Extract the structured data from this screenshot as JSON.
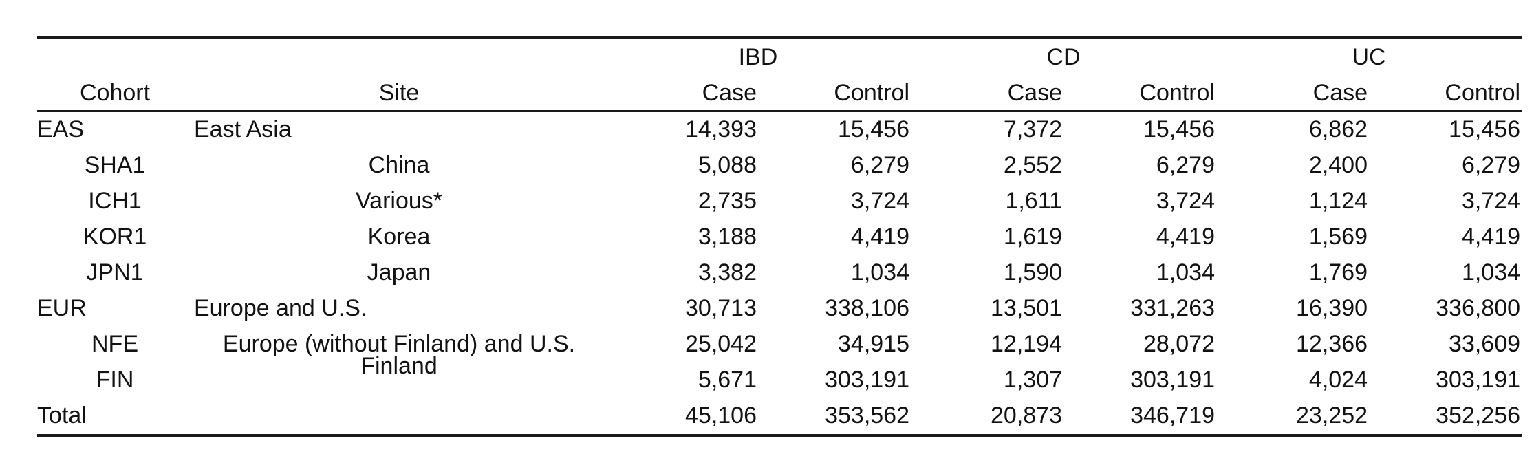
{
  "colors": {
    "background": "#ffffff",
    "text": "#121212",
    "rule": "#1a1a1a"
  },
  "table": {
    "group_headers": {
      "ibd": "IBD",
      "cd": "CD",
      "uc": "UC"
    },
    "headers": {
      "cohort": "Cohort",
      "site": "Site",
      "case": "Case",
      "control": "Control"
    },
    "rows": [
      {
        "cohort": "EAS",
        "site": "East Asia",
        "ibd_case": "14,393",
        "ibd_control": "15,456",
        "cd_case": "7,372",
        "cd_control": "15,456",
        "uc_case": "6,862",
        "uc_control": "15,456"
      },
      {
        "cohort": "SHA1",
        "site": "China",
        "ibd_case": "5,088",
        "ibd_control": "6,279",
        "cd_case": "2,552",
        "cd_control": "6,279",
        "uc_case": "2,400",
        "uc_control": "6,279"
      },
      {
        "cohort": "ICH1",
        "site": "Various*",
        "ibd_case": "2,735",
        "ibd_control": "3,724",
        "cd_case": "1,611",
        "cd_control": "3,724",
        "uc_case": "1,124",
        "uc_control": "3,724"
      },
      {
        "cohort": "KOR1",
        "site": "Korea",
        "ibd_case": "3,188",
        "ibd_control": "4,419",
        "cd_case": "1,619",
        "cd_control": "4,419",
        "uc_case": "1,569",
        "uc_control": "4,419"
      },
      {
        "cohort": "JPN1",
        "site": "Japan",
        "ibd_case": "3,382",
        "ibd_control": "1,034",
        "cd_case": "1,590",
        "cd_control": "1,034",
        "uc_case": "1,769",
        "uc_control": "1,034"
      },
      {
        "cohort": "EUR",
        "site": "Europe and U.S.",
        "ibd_case": "30,713",
        "ibd_control": "338,106",
        "cd_case": "13,501",
        "cd_control": "331,263",
        "uc_case": "16,390",
        "uc_control": "336,800"
      },
      {
        "cohort": "NFE",
        "site": "Europe (without Finland) and U.S.",
        "ibd_case": "25,042",
        "ibd_control": "34,915",
        "cd_case": "12,194",
        "cd_control": "28,072",
        "uc_case": "12,366",
        "uc_control": "33,609"
      },
      {
        "cohort": "FIN",
        "site": "Finland",
        "ibd_case": "5,671",
        "ibd_control": "303,191",
        "cd_case": "1,307",
        "cd_control": "303,191",
        "uc_case": "4,024",
        "uc_control": "303,191"
      },
      {
        "cohort": "Total",
        "site": "",
        "ibd_case": "45,106",
        "ibd_control": "353,562",
        "cd_case": "20,873",
        "cd_control": "346,719",
        "uc_case": "23,252",
        "uc_control": "352,256"
      }
    ]
  }
}
